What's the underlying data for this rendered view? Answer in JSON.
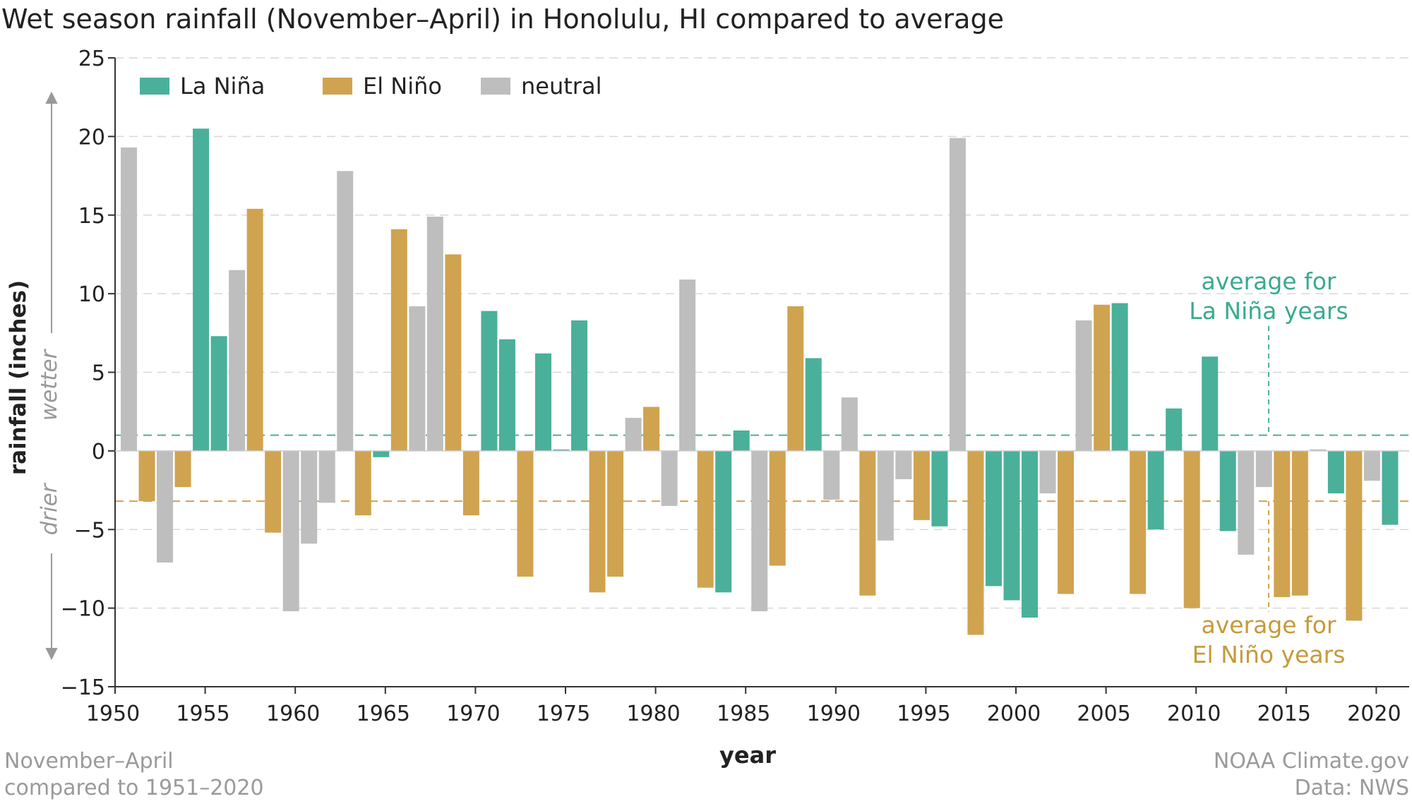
{
  "chart_data": {
    "type": "bar",
    "title": "Wet season rainfall (November–April) in Honolulu, HI compared to average",
    "xlabel": "year",
    "ylabel": "rainfall (inches)",
    "ylim": [
      -15,
      25
    ],
    "yticks": [
      25,
      20,
      15,
      10,
      5,
      0,
      -5,
      -10,
      -15
    ],
    "ytick_labels": [
      "25",
      "20",
      "15",
      "10",
      "5",
      "0",
      "−5",
      "−10",
      "−15"
    ],
    "xticks": [
      1950,
      1955,
      1960,
      1965,
      1970,
      1975,
      1980,
      1985,
      1990,
      1995,
      2000,
      2005,
      2010,
      2015,
      2020
    ],
    "grid": "horizontal dashed",
    "legend": {
      "placement": "top-left",
      "entries": [
        {
          "key": "lanina",
          "label": "La Niña",
          "color": "#4AB09A"
        },
        {
          "key": "elnino",
          "label": "El Niño",
          "color": "#D0A350"
        },
        {
          "key": "neutral",
          "label": "neutral",
          "color": "#BEBEBE"
        }
      ]
    },
    "direction_labels": {
      "wetter": "wetter",
      "drier": "drier"
    },
    "reference_lines": [
      {
        "name": "lanina-average",
        "value": 1.0,
        "color": "#4AB09A",
        "label_lines": [
          "average for",
          "La Niña years"
        ]
      },
      {
        "name": "elnino-average",
        "value": -3.2,
        "color": "#D0A350",
        "label_lines": [
          "average for",
          "El Niño years"
        ]
      }
    ],
    "bars": [
      {
        "year": 1951,
        "value": 19.3,
        "phase": "neutral"
      },
      {
        "year": 1952,
        "value": -3.2,
        "phase": "elnino"
      },
      {
        "year": 1953,
        "value": -7.1,
        "phase": "neutral"
      },
      {
        "year": 1954,
        "value": -2.3,
        "phase": "elnino"
      },
      {
        "year": 1955,
        "value": 20.5,
        "phase": "lanina"
      },
      {
        "year": 1956,
        "value": 7.3,
        "phase": "lanina"
      },
      {
        "year": 1957,
        "value": 11.5,
        "phase": "neutral"
      },
      {
        "year": 1958,
        "value": 15.4,
        "phase": "elnino"
      },
      {
        "year": 1959,
        "value": -5.2,
        "phase": "elnino"
      },
      {
        "year": 1960,
        "value": -10.2,
        "phase": "neutral"
      },
      {
        "year": 1961,
        "value": -5.9,
        "phase": "neutral"
      },
      {
        "year": 1962,
        "value": -3.3,
        "phase": "neutral"
      },
      {
        "year": 1963,
        "value": 17.8,
        "phase": "neutral"
      },
      {
        "year": 1964,
        "value": -4.1,
        "phase": "elnino"
      },
      {
        "year": 1965,
        "value": -0.4,
        "phase": "lanina"
      },
      {
        "year": 1966,
        "value": 14.1,
        "phase": "elnino"
      },
      {
        "year": 1967,
        "value": 9.2,
        "phase": "neutral"
      },
      {
        "year": 1968,
        "value": 14.9,
        "phase": "neutral"
      },
      {
        "year": 1969,
        "value": 12.5,
        "phase": "elnino"
      },
      {
        "year": 1970,
        "value": -4.1,
        "phase": "elnino"
      },
      {
        "year": 1971,
        "value": 8.9,
        "phase": "lanina"
      },
      {
        "year": 1972,
        "value": 7.1,
        "phase": "lanina"
      },
      {
        "year": 1973,
        "value": -8.0,
        "phase": "elnino"
      },
      {
        "year": 1974,
        "value": 6.2,
        "phase": "lanina"
      },
      {
        "year": 1975,
        "value": 0.0,
        "phase": "lanina"
      },
      {
        "year": 1976,
        "value": 8.3,
        "phase": "lanina"
      },
      {
        "year": 1977,
        "value": -9.0,
        "phase": "elnino"
      },
      {
        "year": 1978,
        "value": -8.0,
        "phase": "elnino"
      },
      {
        "year": 1979,
        "value": 2.1,
        "phase": "neutral"
      },
      {
        "year": 1980,
        "value": 2.8,
        "phase": "elnino"
      },
      {
        "year": 1981,
        "value": -3.5,
        "phase": "neutral"
      },
      {
        "year": 1982,
        "value": 10.9,
        "phase": "neutral"
      },
      {
        "year": 1983,
        "value": -8.7,
        "phase": "elnino"
      },
      {
        "year": 1984,
        "value": -9.0,
        "phase": "lanina"
      },
      {
        "year": 1985,
        "value": 1.3,
        "phase": "lanina"
      },
      {
        "year": 1986,
        "value": -10.2,
        "phase": "neutral"
      },
      {
        "year": 1987,
        "value": -7.3,
        "phase": "elnino"
      },
      {
        "year": 1988,
        "value": 9.2,
        "phase": "elnino"
      },
      {
        "year": 1989,
        "value": 5.9,
        "phase": "lanina"
      },
      {
        "year": 1990,
        "value": -3.1,
        "phase": "neutral"
      },
      {
        "year": 1991,
        "value": 3.4,
        "phase": "neutral"
      },
      {
        "year": 1992,
        "value": -9.2,
        "phase": "elnino"
      },
      {
        "year": 1993,
        "value": -5.7,
        "phase": "neutral"
      },
      {
        "year": 1994,
        "value": -1.8,
        "phase": "neutral"
      },
      {
        "year": 1995,
        "value": -4.4,
        "phase": "elnino"
      },
      {
        "year": 1996,
        "value": -4.8,
        "phase": "lanina"
      },
      {
        "year": 1997,
        "value": 19.9,
        "phase": "neutral"
      },
      {
        "year": 1998,
        "value": -11.7,
        "phase": "elnino"
      },
      {
        "year": 1999,
        "value": -8.6,
        "phase": "lanina"
      },
      {
        "year": 2000,
        "value": -9.5,
        "phase": "lanina"
      },
      {
        "year": 2001,
        "value": -10.6,
        "phase": "lanina"
      },
      {
        "year": 2002,
        "value": -2.7,
        "phase": "neutral"
      },
      {
        "year": 2003,
        "value": -9.1,
        "phase": "elnino"
      },
      {
        "year": 2004,
        "value": 8.3,
        "phase": "neutral"
      },
      {
        "year": 2005,
        "value": 9.3,
        "phase": "elnino"
      },
      {
        "year": 2006,
        "value": 9.4,
        "phase": "lanina"
      },
      {
        "year": 2007,
        "value": -9.1,
        "phase": "elnino"
      },
      {
        "year": 2008,
        "value": -5.0,
        "phase": "lanina"
      },
      {
        "year": 2009,
        "value": 2.7,
        "phase": "lanina"
      },
      {
        "year": 2010,
        "value": -10.0,
        "phase": "elnino"
      },
      {
        "year": 2011,
        "value": 6.0,
        "phase": "lanina"
      },
      {
        "year": 2012,
        "value": -5.1,
        "phase": "lanina"
      },
      {
        "year": 2013,
        "value": -6.6,
        "phase": "neutral"
      },
      {
        "year": 2014,
        "value": -2.3,
        "phase": "neutral"
      },
      {
        "year": 2015,
        "value": -9.3,
        "phase": "elnino"
      },
      {
        "year": 2016,
        "value": -9.2,
        "phase": "elnino"
      },
      {
        "year": 2017,
        "value": 0.1,
        "phase": "neutral"
      },
      {
        "year": 2018,
        "value": -2.7,
        "phase": "lanina"
      },
      {
        "year": 2019,
        "value": -10.8,
        "phase": "elnino"
      },
      {
        "year": 2020,
        "value": -1.9,
        "phase": "neutral"
      },
      {
        "year": 2021,
        "value": -4.7,
        "phase": "lanina"
      }
    ]
  },
  "footnote_left": [
    "November–April",
    "compared to 1951–2020"
  ],
  "footnote_right": [
    "NOAA Climate.gov",
    "Data: NWS"
  ]
}
